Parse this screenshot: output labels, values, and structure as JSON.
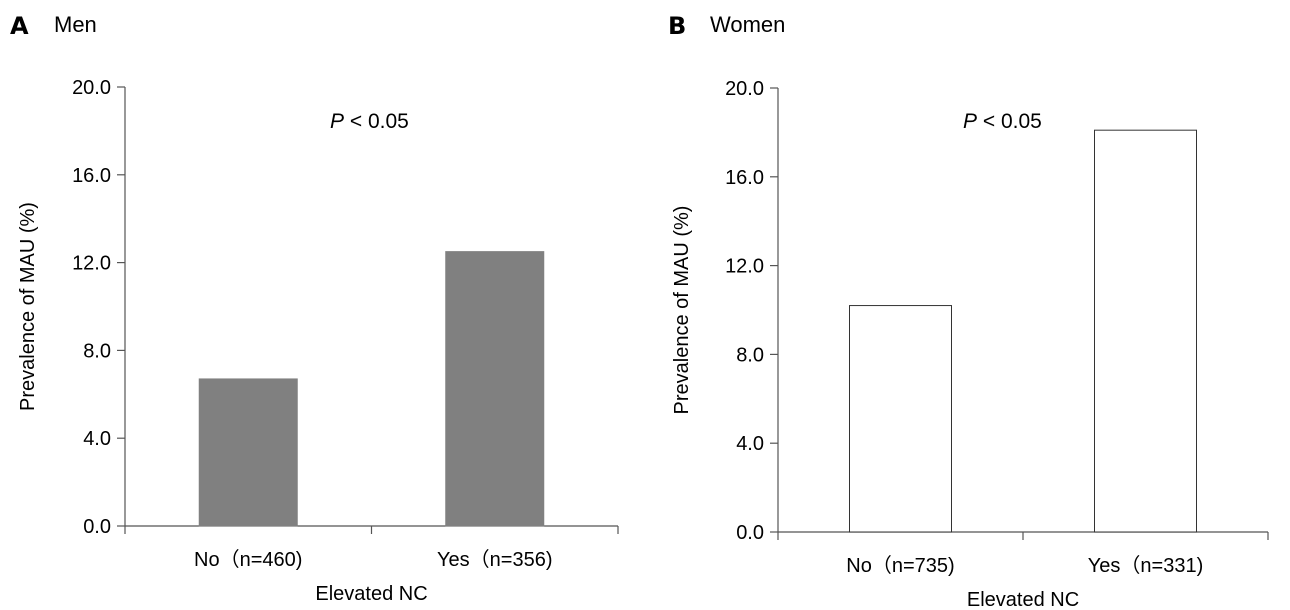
{
  "chart_data": [
    {
      "type": "bar",
      "panel_label": "A",
      "subtitle": "Men",
      "categories": [
        "No（n=460)",
        "Yes（n=356)"
      ],
      "values": [
        6.7,
        12.5
      ],
      "xlabel": "Elevated NC",
      "ylabel": "Prevalence of MAU (%)",
      "ylim": [
        0,
        20
      ],
      "yticks": [
        "0.0",
        "4.0",
        "8.0",
        "12.0",
        "16.0",
        "20.0"
      ],
      "annotation": {
        "italic": "P",
        "text": " < 0.05"
      },
      "bar_fill": "#808080",
      "bar_stroke": "#808080",
      "grid": false
    },
    {
      "type": "bar",
      "panel_label": "B",
      "subtitle": "Women",
      "categories": [
        "No（n=735)",
        "Yes（n=331)"
      ],
      "values": [
        10.2,
        18.1
      ],
      "xlabel": "Elevated NC",
      "ylabel": "Prevalence of MAU (%)",
      "ylim": [
        0,
        20
      ],
      "yticks": [
        "0.0",
        "4.0",
        "8.0",
        "12.0",
        "16.0",
        "20.0"
      ],
      "annotation": {
        "italic": "P",
        "text": " < 0.05"
      },
      "bar_fill": "#ffffff",
      "bar_stroke": "#333333",
      "grid": false
    }
  ]
}
